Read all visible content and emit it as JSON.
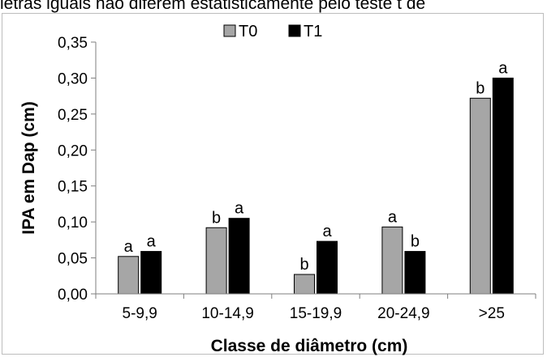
{
  "caption": "letras iguais não diferem estatisticamente pelo teste t de",
  "chart_data": {
    "type": "bar",
    "categories": [
      "5-9,9",
      "10-14,9",
      "15-19,9",
      "20-24,9",
      ">25"
    ],
    "series": [
      {
        "name": "T0",
        "color": "#a6a6a6",
        "values": [
          0.052,
          0.092,
          0.027,
          0.093,
          0.272
        ],
        "letters": [
          "a",
          "b",
          "b",
          "a",
          "b"
        ]
      },
      {
        "name": "T1",
        "color": "#000000",
        "values": [
          0.059,
          0.105,
          0.073,
          0.059,
          0.3
        ],
        "letters": [
          "a",
          "a",
          "a",
          "b",
          "a"
        ]
      }
    ],
    "xlabel": "Classe de diâmetro (cm)",
    "ylabel": "IPA em Dap (cm)",
    "ylim": [
      0,
      0.35
    ],
    "yticks": [
      "0,00",
      "0,05",
      "0,10",
      "0,15",
      "0,20",
      "0,25",
      "0,30",
      "0,35"
    ],
    "grid": false,
    "legend": "top-center"
  }
}
